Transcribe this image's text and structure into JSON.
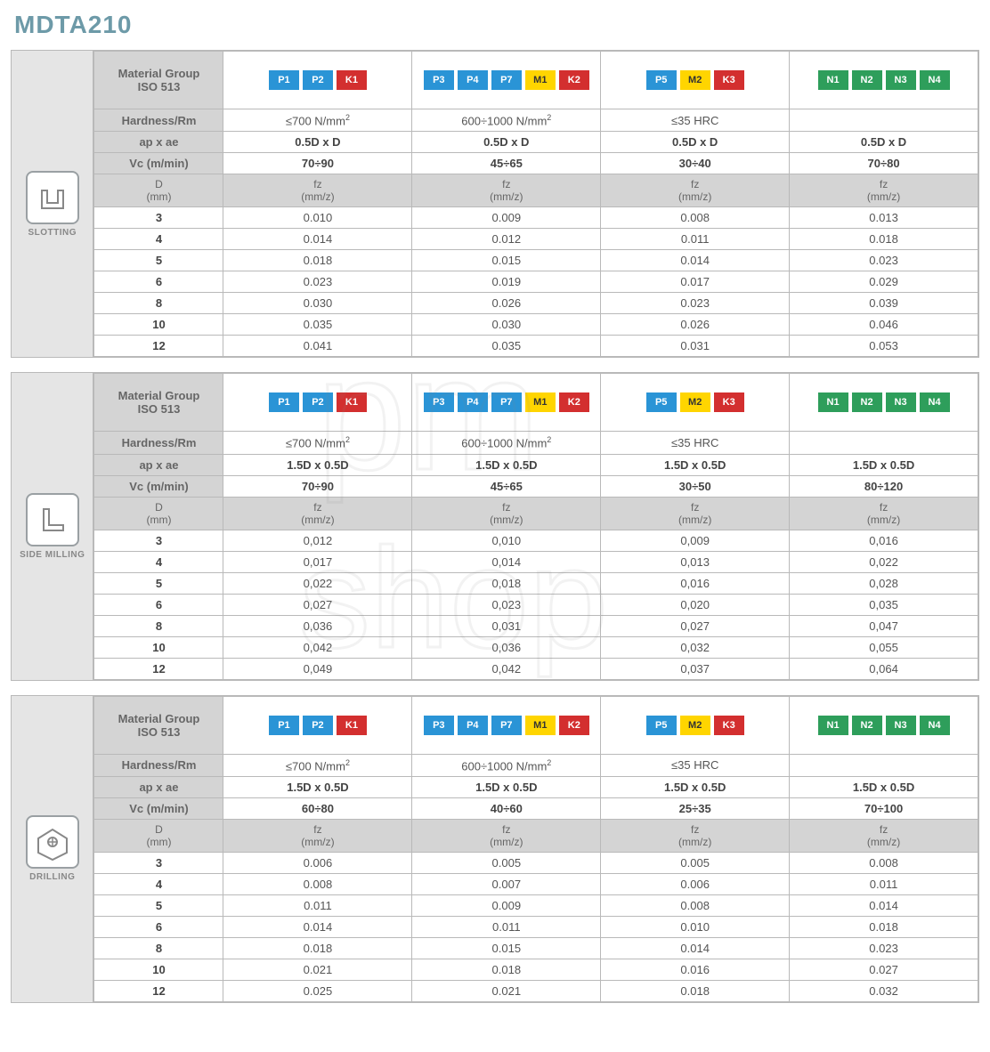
{
  "title": "MDTA210",
  "chip_colors": {
    "P": "#2a94d6",
    "K": "#d32f2f",
    "M": "#ffd500",
    "N": "#2e9e5b"
  },
  "row_labels": {
    "material_group": "Material Group ISO 513",
    "hardness": "Hardness/Rm",
    "apae": "ap x ae",
    "vc": "Vc (m/min)",
    "d": "D (mm)",
    "fz": "fz (mm/z)"
  },
  "groups": [
    {
      "chips": [
        "P1",
        "P2",
        "K1"
      ],
      "hardness": "≤700 N/mm²"
    },
    {
      "chips": [
        "P3",
        "P4",
        "P7",
        "M1",
        "K2"
      ],
      "hardness": "600÷1000 N/mm²"
    },
    {
      "chips": [
        "P5",
        "M2",
        "K3"
      ],
      "hardness": "≤35 HRC"
    },
    {
      "chips": [
        "N1",
        "N2",
        "N3",
        "N4"
      ],
      "hardness": ""
    }
  ],
  "diameters": [
    "3",
    "4",
    "5",
    "6",
    "8",
    "10",
    "12"
  ],
  "sections": [
    {
      "op": "SLOTTING",
      "icon": "slot",
      "apae": [
        "0.5D x D",
        "0.5D x D",
        "0.5D x D",
        "0.5D x D"
      ],
      "vc": [
        "70÷90",
        "45÷65",
        "30÷40",
        "70÷80"
      ],
      "fz": [
        [
          "0.010",
          "0.009",
          "0.008",
          "0.013"
        ],
        [
          "0.014",
          "0.012",
          "0.011",
          "0.018"
        ],
        [
          "0.018",
          "0.015",
          "0.014",
          "0.023"
        ],
        [
          "0.023",
          "0.019",
          "0.017",
          "0.029"
        ],
        [
          "0.030",
          "0.026",
          "0.023",
          "0.039"
        ],
        [
          "0.035",
          "0.030",
          "0.026",
          "0.046"
        ],
        [
          "0.041",
          "0.035",
          "0.031",
          "0.053"
        ]
      ]
    },
    {
      "op": "SIDE MILLING",
      "icon": "side",
      "apae": [
        "1.5D x 0.5D",
        "1.5D x 0.5D",
        "1.5D x 0.5D",
        "1.5D x 0.5D"
      ],
      "vc": [
        "70÷90",
        "45÷65",
        "30÷50",
        "80÷120"
      ],
      "fz": [
        [
          "0,012",
          "0,010",
          "0,009",
          "0,016"
        ],
        [
          "0,017",
          "0,014",
          "0,013",
          "0,022"
        ],
        [
          "0,022",
          "0,018",
          "0,016",
          "0,028"
        ],
        [
          "0,027",
          "0,023",
          "0,020",
          "0,035"
        ],
        [
          "0,036",
          "0,031",
          "0,027",
          "0,047"
        ],
        [
          "0,042",
          "0,036",
          "0,032",
          "0,055"
        ],
        [
          "0,049",
          "0,042",
          "0,037",
          "0,064"
        ]
      ]
    },
    {
      "op": "DRILLING",
      "icon": "drill",
      "apae": [
        "1.5D x 0.5D",
        "1.5D x 0.5D",
        "1.5D x 0.5D",
        "1.5D x 0.5D"
      ],
      "vc": [
        "60÷80",
        "40÷60",
        "25÷35",
        "70÷100"
      ],
      "fz": [
        [
          "0.006",
          "0.005",
          "0.005",
          "0.008"
        ],
        [
          "0.008",
          "0.007",
          "0.006",
          "0.011"
        ],
        [
          "0.011",
          "0.009",
          "0.008",
          "0.014"
        ],
        [
          "0.014",
          "0.011",
          "0.010",
          "0.018"
        ],
        [
          "0.018",
          "0.015",
          "0.014",
          "0.023"
        ],
        [
          "0.021",
          "0.018",
          "0.016",
          "0.027"
        ],
        [
          "0.025",
          "0.021",
          "0.018",
          "0.032"
        ]
      ]
    }
  ],
  "watermark": "pm shop",
  "style": {
    "bg": "#ffffff",
    "grid": "#b9b9b9",
    "header_bg": "#d4d4d4",
    "side_bg": "#e5e5e5",
    "title_color": "#6d9aa8"
  }
}
